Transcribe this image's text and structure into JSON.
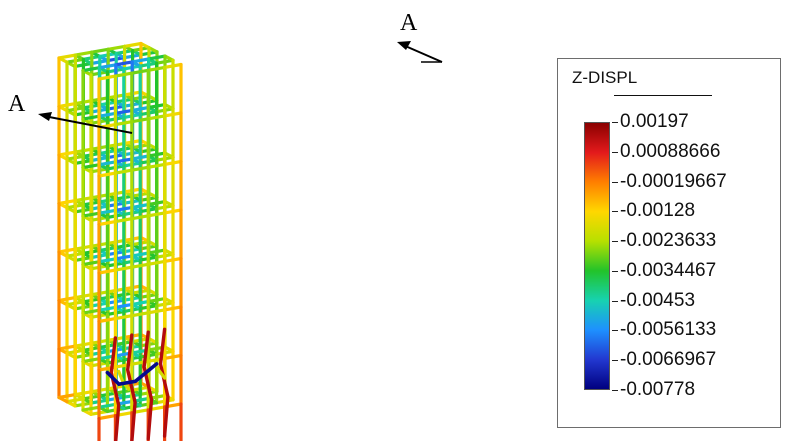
{
  "figure": {
    "section_label_left": "A",
    "section_label_top": "A"
  },
  "legend": {
    "title": "Z-DISPL",
    "values": [
      "0.00197",
      "0.00088666",
      "-0.00019667",
      "-0.00128",
      "-0.0023633",
      "-0.0034467",
      "-0.00453",
      "-0.0056133",
      "-0.0066967",
      "-0.00778"
    ],
    "colors": [
      "#8b0000",
      "#e31a1c",
      "#ff7f00",
      "#ffd700",
      "#b7e000",
      "#22c32a",
      "#17d2b0",
      "#1e90ff",
      "#2238d0",
      "#00007f"
    ]
  }
}
